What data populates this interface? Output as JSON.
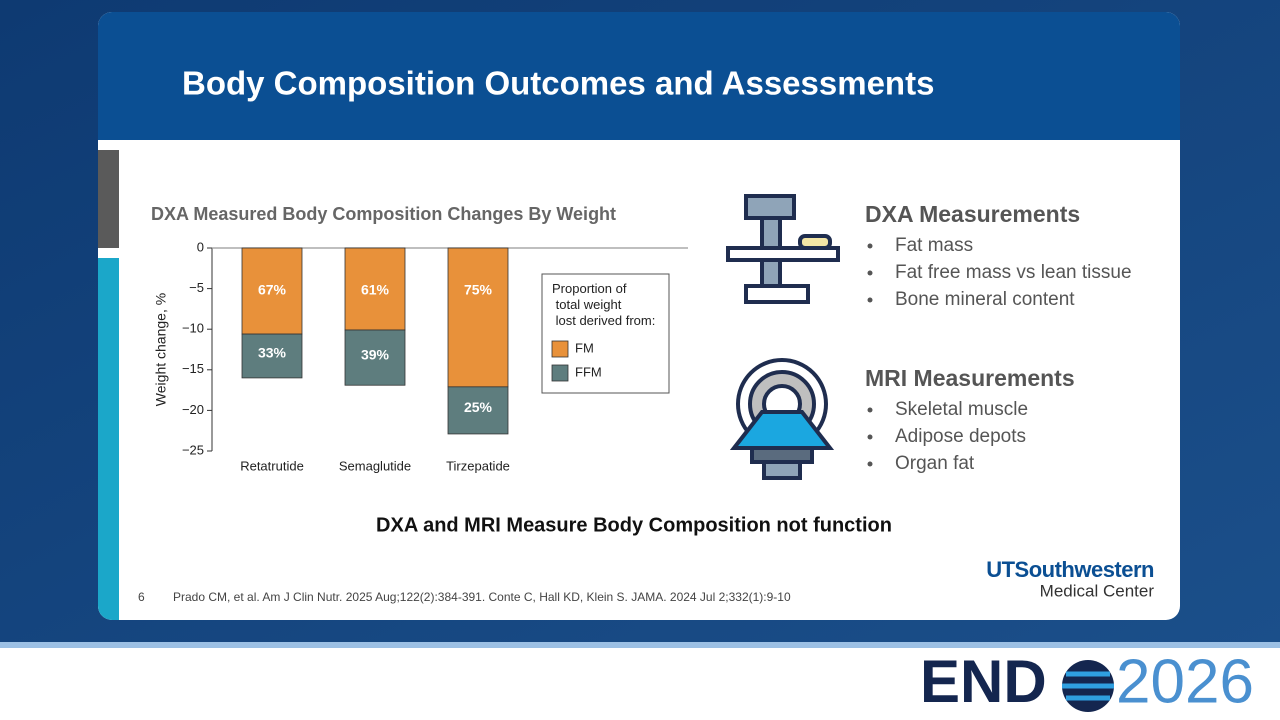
{
  "slide": {
    "title": "Body Composition Outcomes and Assessments",
    "number": "6",
    "caption": "DXA and MRI Measure Body Composition not function",
    "citation": "Prado CM, et al. Am J Clin Nutr. 2025 Aug;122(2):384-391. Conte C, Hall KD, Klein S. JAMA. 2024 Jul 2;332(1):9-10"
  },
  "chart_data": {
    "type": "stacked-bar",
    "title": "DXA Measured Body Composition Changes By Weight",
    "y_label": "Weight change, %",
    "categories": [
      "Retatrutide",
      "Semaglutide",
      "Tirzepatide"
    ],
    "series": [
      {
        "name": "FM",
        "color": "#e8913a",
        "values": [
          -10.6,
          -10.1,
          -17.1
        ],
        "segment_labels": [
          "67%",
          "61%",
          "75%"
        ]
      },
      {
        "name": "FFM",
        "color": "#5e7d7e",
        "values": [
          -5.4,
          -6.8,
          -5.8
        ],
        "segment_labels": [
          "33%",
          "39%",
          "25%"
        ]
      }
    ],
    "ylim": [
      -25,
      0
    ],
    "yticks": [
      0,
      {
        "value": -5,
        "label": "−5"
      },
      {
        "value": -10,
        "label": "−10"
      },
      {
        "value": -15,
        "label": "−15"
      },
      {
        "value": -20,
        "label": "−20"
      },
      {
        "value": -25,
        "label": "−25"
      }
    ],
    "legend_title": "Proportion of total weight lost derived from:",
    "legend_position": "right"
  },
  "sections": [
    {
      "title": "DXA Measurements",
      "items": [
        "Fat mass",
        "Fat free mass vs lean tissue",
        "Bone mineral content"
      ]
    },
    {
      "title": "MRI Measurements",
      "items": [
        "Skeletal muscle",
        "Adipose depots",
        "Organ fat"
      ]
    }
  ],
  "logo": {
    "name": "UTSouthwestern",
    "subtitle": "Medical Center"
  },
  "event": {
    "brand": "END",
    "year": "2026"
  }
}
